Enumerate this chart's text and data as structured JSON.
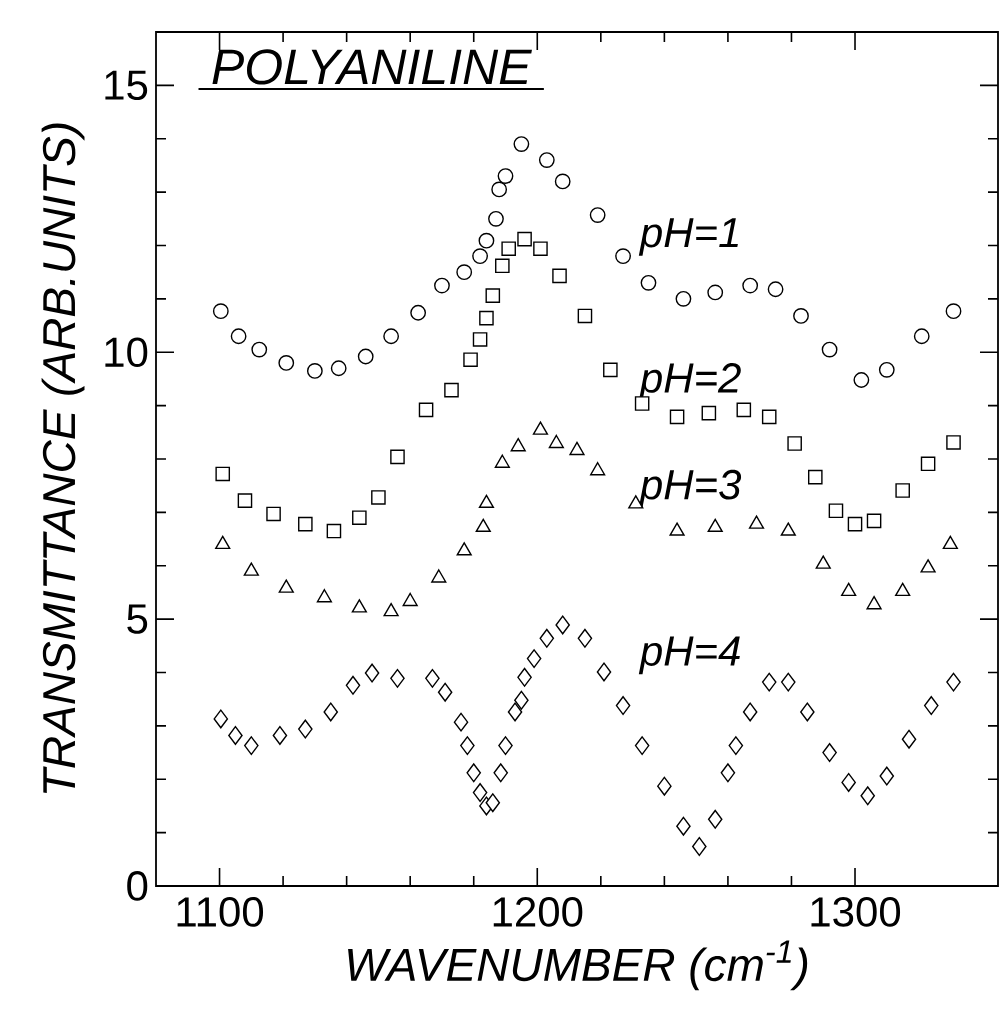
{
  "chart_data": {
    "type": "scatter",
    "title": "POLYANILINE",
    "xlabel": "WAVENUMBER (cm$^{-1}$)",
    "ylabel": "TRANSMITTANCE (ARB.UNITS)",
    "xlim": [
      1080,
      1345
    ],
    "ylim": [
      0,
      16
    ],
    "xticks": [
      1100,
      1200,
      1300
    ],
    "yticks": [
      0,
      5,
      10,
      15
    ],
    "series": [
      {
        "name": "pH=1",
        "color": "#000000",
        "marker": "circle",
        "x": [
          1100.4,
          1106,
          1112.5,
          1121,
          1130,
          1137.5,
          1146,
          1154,
          1162.5,
          1170,
          1177,
          1182,
          1184,
          1187,
          1188,
          1190,
          1195,
          1203,
          1208,
          1219,
          1227,
          1235,
          1246,
          1256,
          1267,
          1275,
          1283,
          1292,
          1302,
          1310,
          1321,
          1331
        ],
        "values": [
          10.77,
          10.3,
          10.05,
          9.8,
          9.65,
          9.7,
          9.92,
          10.3,
          10.74,
          11.25,
          11.5,
          11.8,
          12.09,
          12.5,
          13.05,
          13.3,
          13.9,
          13.6,
          13.2,
          12.57,
          11.8,
          11.3,
          11.0,
          11.12,
          11.25,
          11.18,
          10.68,
          10.05,
          9.48,
          9.67,
          10.3,
          10.77
        ]
      },
      {
        "name": "pH=2",
        "color": "#000000",
        "marker": "square",
        "x": [
          1101,
          1108,
          1117,
          1127,
          1136,
          1144,
          1150,
          1156,
          1165,
          1173,
          1179,
          1182,
          1184,
          1186,
          1189,
          1191,
          1196,
          1201,
          1207,
          1215,
          1223,
          1233,
          1244,
          1254,
          1265,
          1273,
          1281,
          1287.5,
          1294,
          1300,
          1306,
          1315,
          1323,
          1331
        ],
        "values": [
          7.72,
          7.22,
          6.97,
          6.78,
          6.65,
          6.9,
          7.28,
          8.04,
          8.92,
          9.29,
          9.86,
          10.24,
          10.64,
          11.06,
          11.62,
          11.94,
          12.12,
          11.94,
          11.43,
          10.68,
          9.67,
          9.04,
          8.79,
          8.86,
          8.92,
          8.79,
          8.29,
          7.66,
          7.03,
          6.78,
          6.84,
          7.41,
          7.91,
          8.31
        ]
      },
      {
        "name": "pH=3",
        "color": "#000000",
        "marker": "triangle",
        "x": [
          1101,
          1110,
          1121,
          1133,
          1144,
          1154,
          1160,
          1169,
          1177,
          1183,
          1184,
          1189,
          1194,
          1201,
          1206,
          1212.5,
          1219,
          1231,
          1244,
          1256,
          1269,
          1279,
          1290,
          1298,
          1306,
          1315,
          1323,
          1330
        ],
        "values": [
          6.4,
          5.9,
          5.58,
          5.4,
          5.21,
          5.14,
          5.33,
          5.77,
          6.28,
          6.72,
          7.17,
          7.92,
          8.23,
          8.54,
          8.29,
          8.16,
          7.78,
          7.16,
          6.65,
          6.72,
          6.78,
          6.65,
          6.03,
          5.52,
          5.27,
          5.52,
          5.96,
          6.4
        ]
      },
      {
        "name": "pH=4",
        "color": "#000000",
        "marker": "diamond",
        "x": [
          1100.4,
          1105,
          1110,
          1119,
          1127,
          1135,
          1142,
          1148,
          1156,
          1167,
          1171,
          1176,
          1178,
          1180,
          1182,
          1184,
          1186,
          1188.5,
          1190,
          1193,
          1195,
          1196,
          1199,
          1203,
          1208,
          1215,
          1221,
          1227,
          1233,
          1240,
          1246,
          1251,
          1256,
          1260,
          1262.5,
          1267,
          1273,
          1279,
          1285,
          1292,
          1298,
          1304,
          1310,
          1317,
          1324,
          1331
        ],
        "values": [
          3.13,
          2.82,
          2.63,
          2.82,
          2.94,
          3.26,
          3.76,
          3.99,
          3.89,
          3.89,
          3.63,
          3.07,
          2.63,
          2.12,
          1.75,
          1.5,
          1.56,
          2.12,
          2.63,
          3.26,
          3.48,
          3.91,
          4.26,
          4.64,
          4.89,
          4.64,
          4.01,
          3.38,
          2.63,
          1.87,
          1.12,
          0.74,
          1.25,
          2.12,
          2.63,
          3.26,
          3.82,
          3.82,
          3.26,
          2.5,
          1.94,
          1.69,
          2.06,
          2.75,
          3.38,
          3.82
        ]
      }
    ]
  }
}
